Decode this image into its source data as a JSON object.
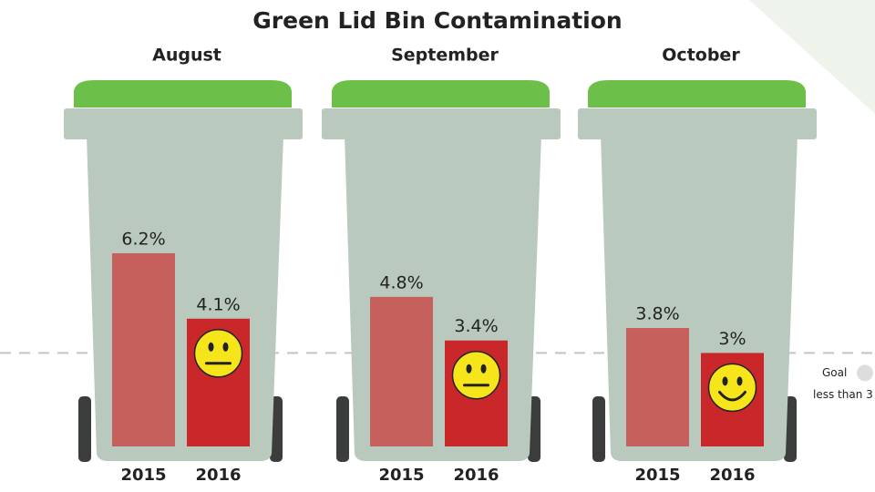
{
  "chart_data": {
    "type": "bar",
    "title": "Green Lid Bin Contamination",
    "categories": [
      "August",
      "September",
      "October"
    ],
    "series": [
      {
        "name": "2015",
        "color": "#c6605c",
        "values": [
          6.2,
          4.8,
          3.8
        ],
        "value_labels": [
          "6.2%",
          "4.8%",
          "3.8%"
        ]
      },
      {
        "name": "2016",
        "color": "#c9272a",
        "values": [
          4.1,
          3.4,
          3
        ],
        "value_labels": [
          "4.1%",
          "3.4%",
          "3%"
        ],
        "faces": [
          "neutral",
          "neutral",
          "smile"
        ]
      }
    ],
    "goal": 3,
    "goal_title": "Goal",
    "goal_label": "less than 3"
  }
}
